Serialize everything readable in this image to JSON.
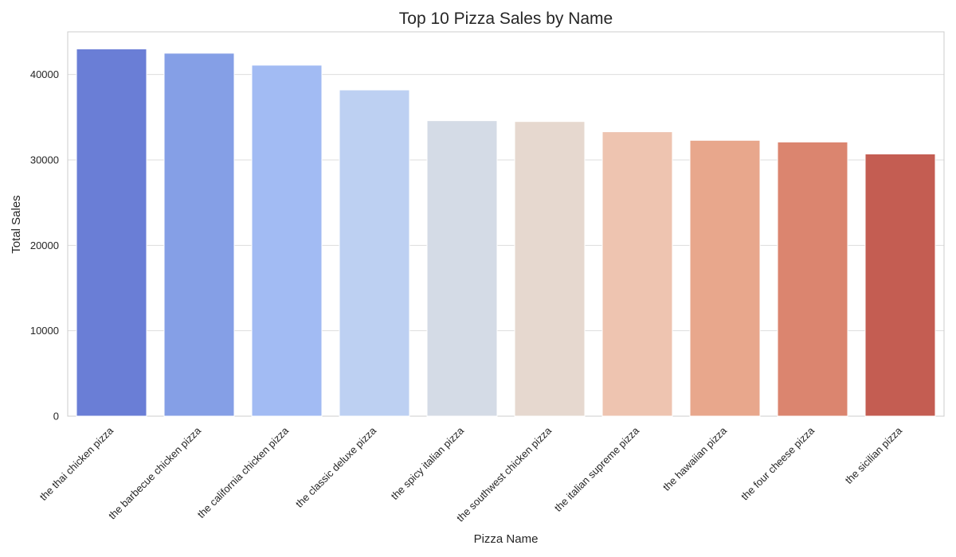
{
  "chart_data": {
    "type": "bar",
    "title": "Top 10 Pizza Sales by Name",
    "xlabel": "Pizza Name",
    "ylabel": "Total Sales",
    "categories": [
      "the thai chicken pizza",
      "the barbecue chicken pizza",
      "the california chicken pizza",
      "the classic deluxe pizza",
      "the spicy italian pizza",
      "the southwest chicken pizza",
      "the italian supreme pizza",
      "the hawaiian pizza",
      "the four cheese pizza",
      "the sicilian pizza"
    ],
    "values": [
      43000,
      42500,
      41100,
      38200,
      34600,
      34500,
      33300,
      32300,
      32100,
      30700
    ],
    "colors": [
      "#6a7ed6",
      "#859fe6",
      "#a2bbf3",
      "#bdd0f2",
      "#d4dbe6",
      "#e6d8cf",
      "#eec4b0",
      "#e8a78c",
      "#db856f",
      "#c45d52"
    ],
    "ylim": [
      0,
      45000
    ],
    "yticks": [
      0,
      10000,
      20000,
      30000,
      40000
    ],
    "ytick_labels": [
      "0",
      "10000",
      "20000",
      "30000",
      "40000"
    ],
    "grid": true,
    "legend": "none"
  }
}
